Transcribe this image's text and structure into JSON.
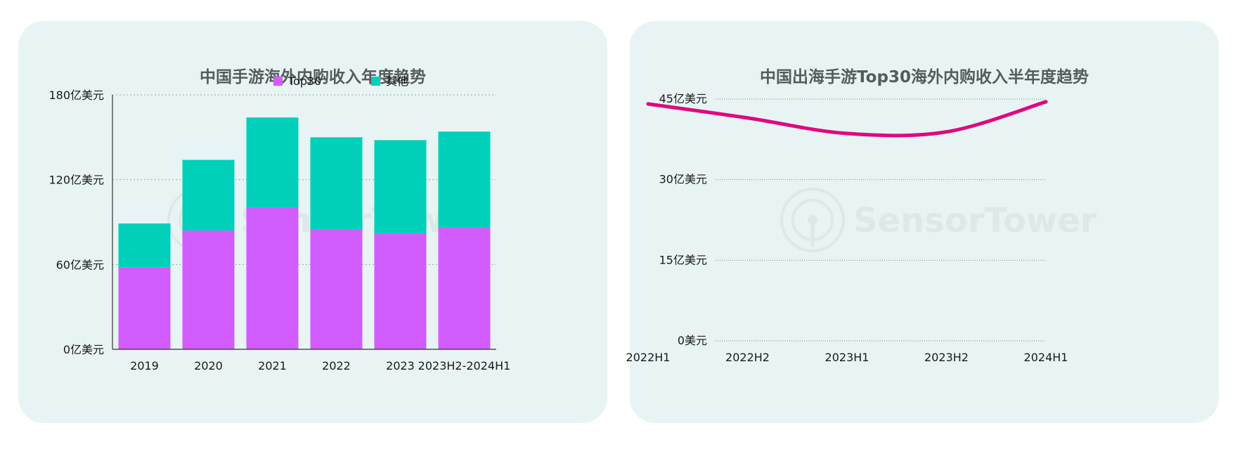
{
  "colors": {
    "top30": "#d35cff",
    "other": "#00d0b9",
    "line": "#e0087f",
    "panel_bg": "#e7f4f3",
    "watermark": "#dde9e8"
  },
  "watermark": {
    "text": "SensorTower"
  },
  "chart_data": [
    {
      "type": "bar",
      "stacked": true,
      "title": "中国手游海外内购收入年度趋势",
      "categories": [
        "2019",
        "2020",
        "2021",
        "2022",
        "2023",
        "2023H2-2024H1"
      ],
      "series": [
        {
          "name": "Top30",
          "values": [
            58,
            84,
            100,
            85,
            82,
            86
          ]
        },
        {
          "name": "其他",
          "values": [
            31,
            50,
            64,
            65,
            66,
            68
          ]
        }
      ],
      "ylim": [
        0,
        180
      ],
      "yticks": [
        {
          "value": 0,
          "label": "0亿美元"
        },
        {
          "value": 60,
          "label": "60亿美元"
        },
        {
          "value": 120,
          "label": "120亿美元"
        },
        {
          "value": 180,
          "label": "180亿美元"
        }
      ],
      "grid": true,
      "legend": "top-center"
    },
    {
      "type": "line",
      "title": "中国出海手游Top30海外内购收入半年度趋势",
      "categories": [
        "2022H1",
        "2022H2",
        "2023H1",
        "2023H2",
        "2024H1"
      ],
      "series": [
        {
          "values": [
            44.1,
            41.5,
            38.6,
            38.9,
            44.5
          ]
        }
      ],
      "ylim": [
        0,
        45
      ],
      "yticks": [
        {
          "value": 0,
          "label": "0美元"
        },
        {
          "value": 15,
          "label": "15亿美元"
        },
        {
          "value": 30,
          "label": "30亿美元"
        },
        {
          "value": 45,
          "label": "45亿美元"
        }
      ],
      "grid": true
    }
  ]
}
